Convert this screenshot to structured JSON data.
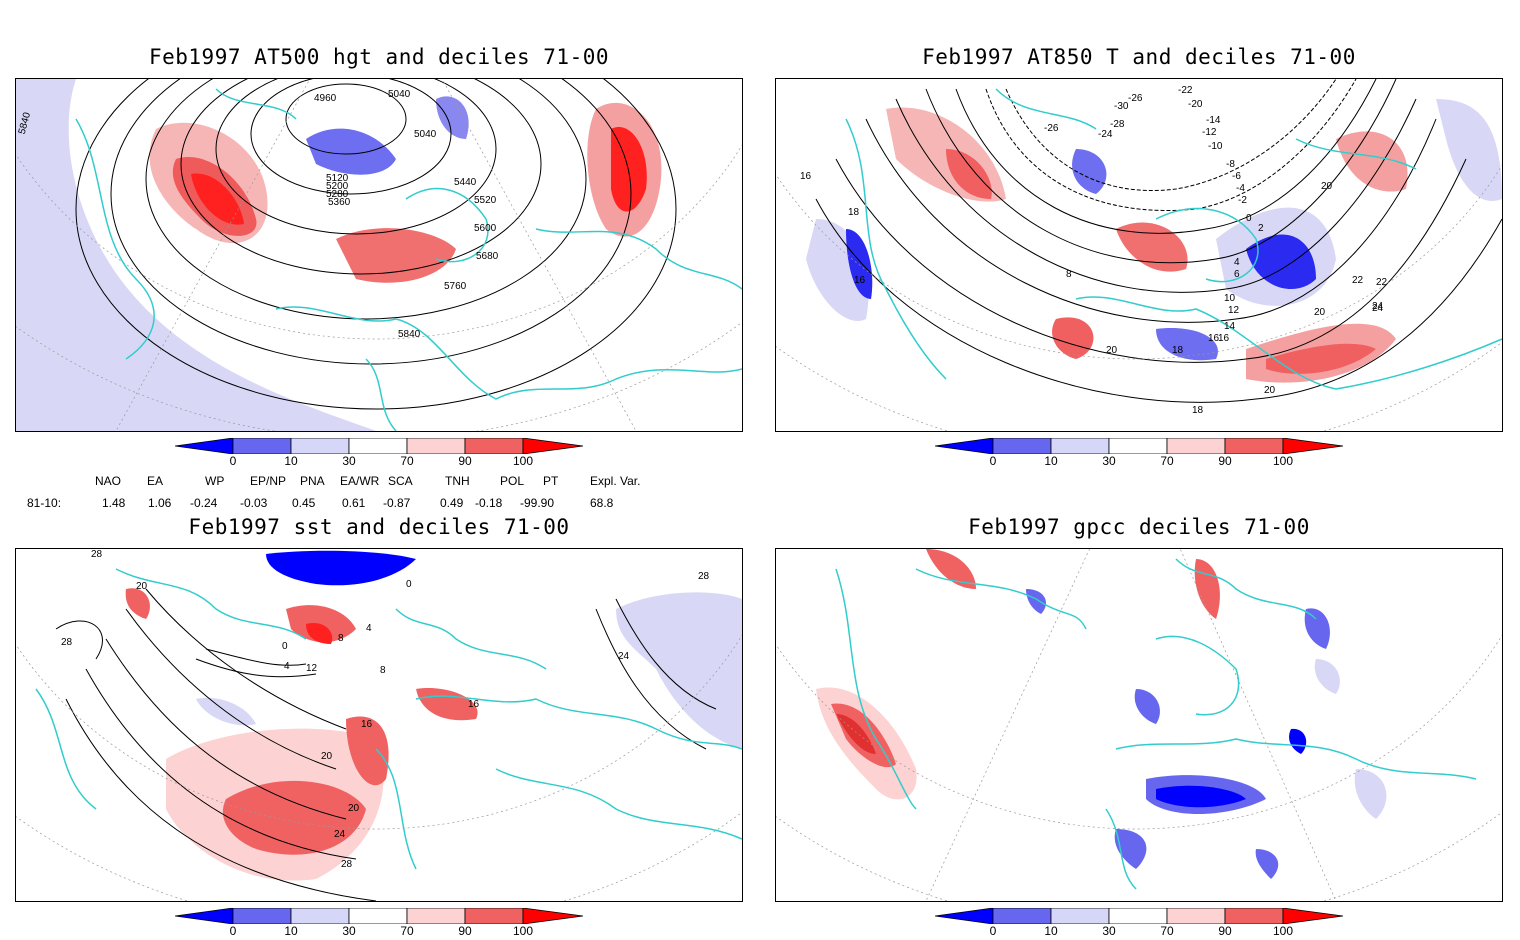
{
  "panels": [
    {
      "title": "Feb1997 AT500 hgt and deciles 71-00",
      "contour_labels": [
        "4960",
        "5040",
        "5040",
        "5120",
        "5200",
        "5280",
        "5360",
        "5440",
        "5520",
        "5600",
        "5680",
        "5760",
        "5840",
        "5840"
      ]
    },
    {
      "title": "Feb1997 AT850 T and deciles 71-00",
      "contour_labels": [
        "-26",
        "-30",
        "-28",
        "-26",
        "-24",
        "-22",
        "-20",
        "-14",
        "-12",
        "-10",
        "-8",
        "-6",
        "-4",
        "-2",
        "0",
        "2",
        "4",
        "6",
        "8",
        "10",
        "12",
        "14",
        "16",
        "18",
        "20",
        "22",
        "24",
        "16",
        "18",
        "16",
        "20",
        "18",
        "16",
        "20",
        "20",
        "18",
        "22",
        "24"
      ]
    },
    {
      "title": "Feb1997 sst and deciles 71-00",
      "contour_labels": [
        "28",
        "28",
        "20",
        "28",
        "24",
        "16",
        "12",
        "8",
        "4",
        "0",
        "4",
        "8",
        "16",
        "20",
        "20",
        "24",
        "28",
        "0"
      ]
    },
    {
      "title": "Feb1997 gpcc deciles 71-00",
      "contour_labels": []
    }
  ],
  "colorbar": {
    "ticks": [
      "0",
      "10",
      "30",
      "70",
      "90",
      "100"
    ],
    "colors": [
      "#0000ff",
      "#6666ee",
      "#d6d6f8",
      "#ffffff",
      "#fcd2d2",
      "#f06262",
      "#ff0000"
    ]
  },
  "indices": {
    "headers": [
      "NAO",
      "EA",
      "WP",
      "EP/NP",
      "PNA",
      "EA/WR",
      "SCA",
      "TNH",
      "POL",
      "PT",
      "Expl. Var."
    ],
    "row_label": "81-10:",
    "values": [
      "1.48",
      "1.06",
      "-0.24",
      "-0.03",
      "0.45",
      "0.61",
      "-0.87",
      "0.49",
      "-0.18",
      "-99.90",
      "68.8"
    ]
  },
  "map_colors": {
    "coast": "#33cccc",
    "contour": "#000000",
    "grid": "#999999"
  }
}
